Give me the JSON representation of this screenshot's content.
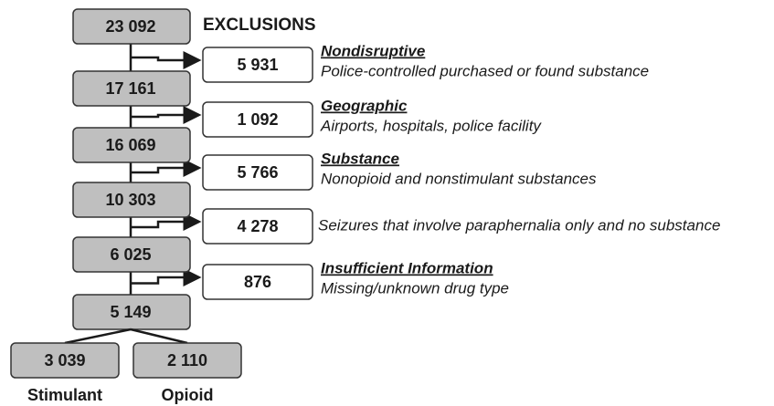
{
  "title": "EXCLUSIONS",
  "flow": [
    "23 092",
    "17 161",
    "16 069",
    "10 303",
    "6 025",
    "5 149"
  ],
  "exclusions": [
    {
      "count": "5 931",
      "category": "Nondisruptive",
      "description": "Police-controlled purchased or found substance"
    },
    {
      "count": "1 092",
      "category": "Geographic",
      "description": "Airports, hospitals, police facility"
    },
    {
      "count": "5 766",
      "category": "Substance",
      "description": "Nonopioid and nonstimulant substances"
    },
    {
      "count": "4 278",
      "description": "Seizures that involve paraphernalia only and no substance"
    },
    {
      "count": "876",
      "category": "Insufficient Information",
      "description": "Missing/unknown drug type"
    }
  ],
  "outcomes": [
    {
      "count": "3 039",
      "label": "Stimulant"
    },
    {
      "count": "2 110",
      "label": "Opioid"
    }
  ]
}
